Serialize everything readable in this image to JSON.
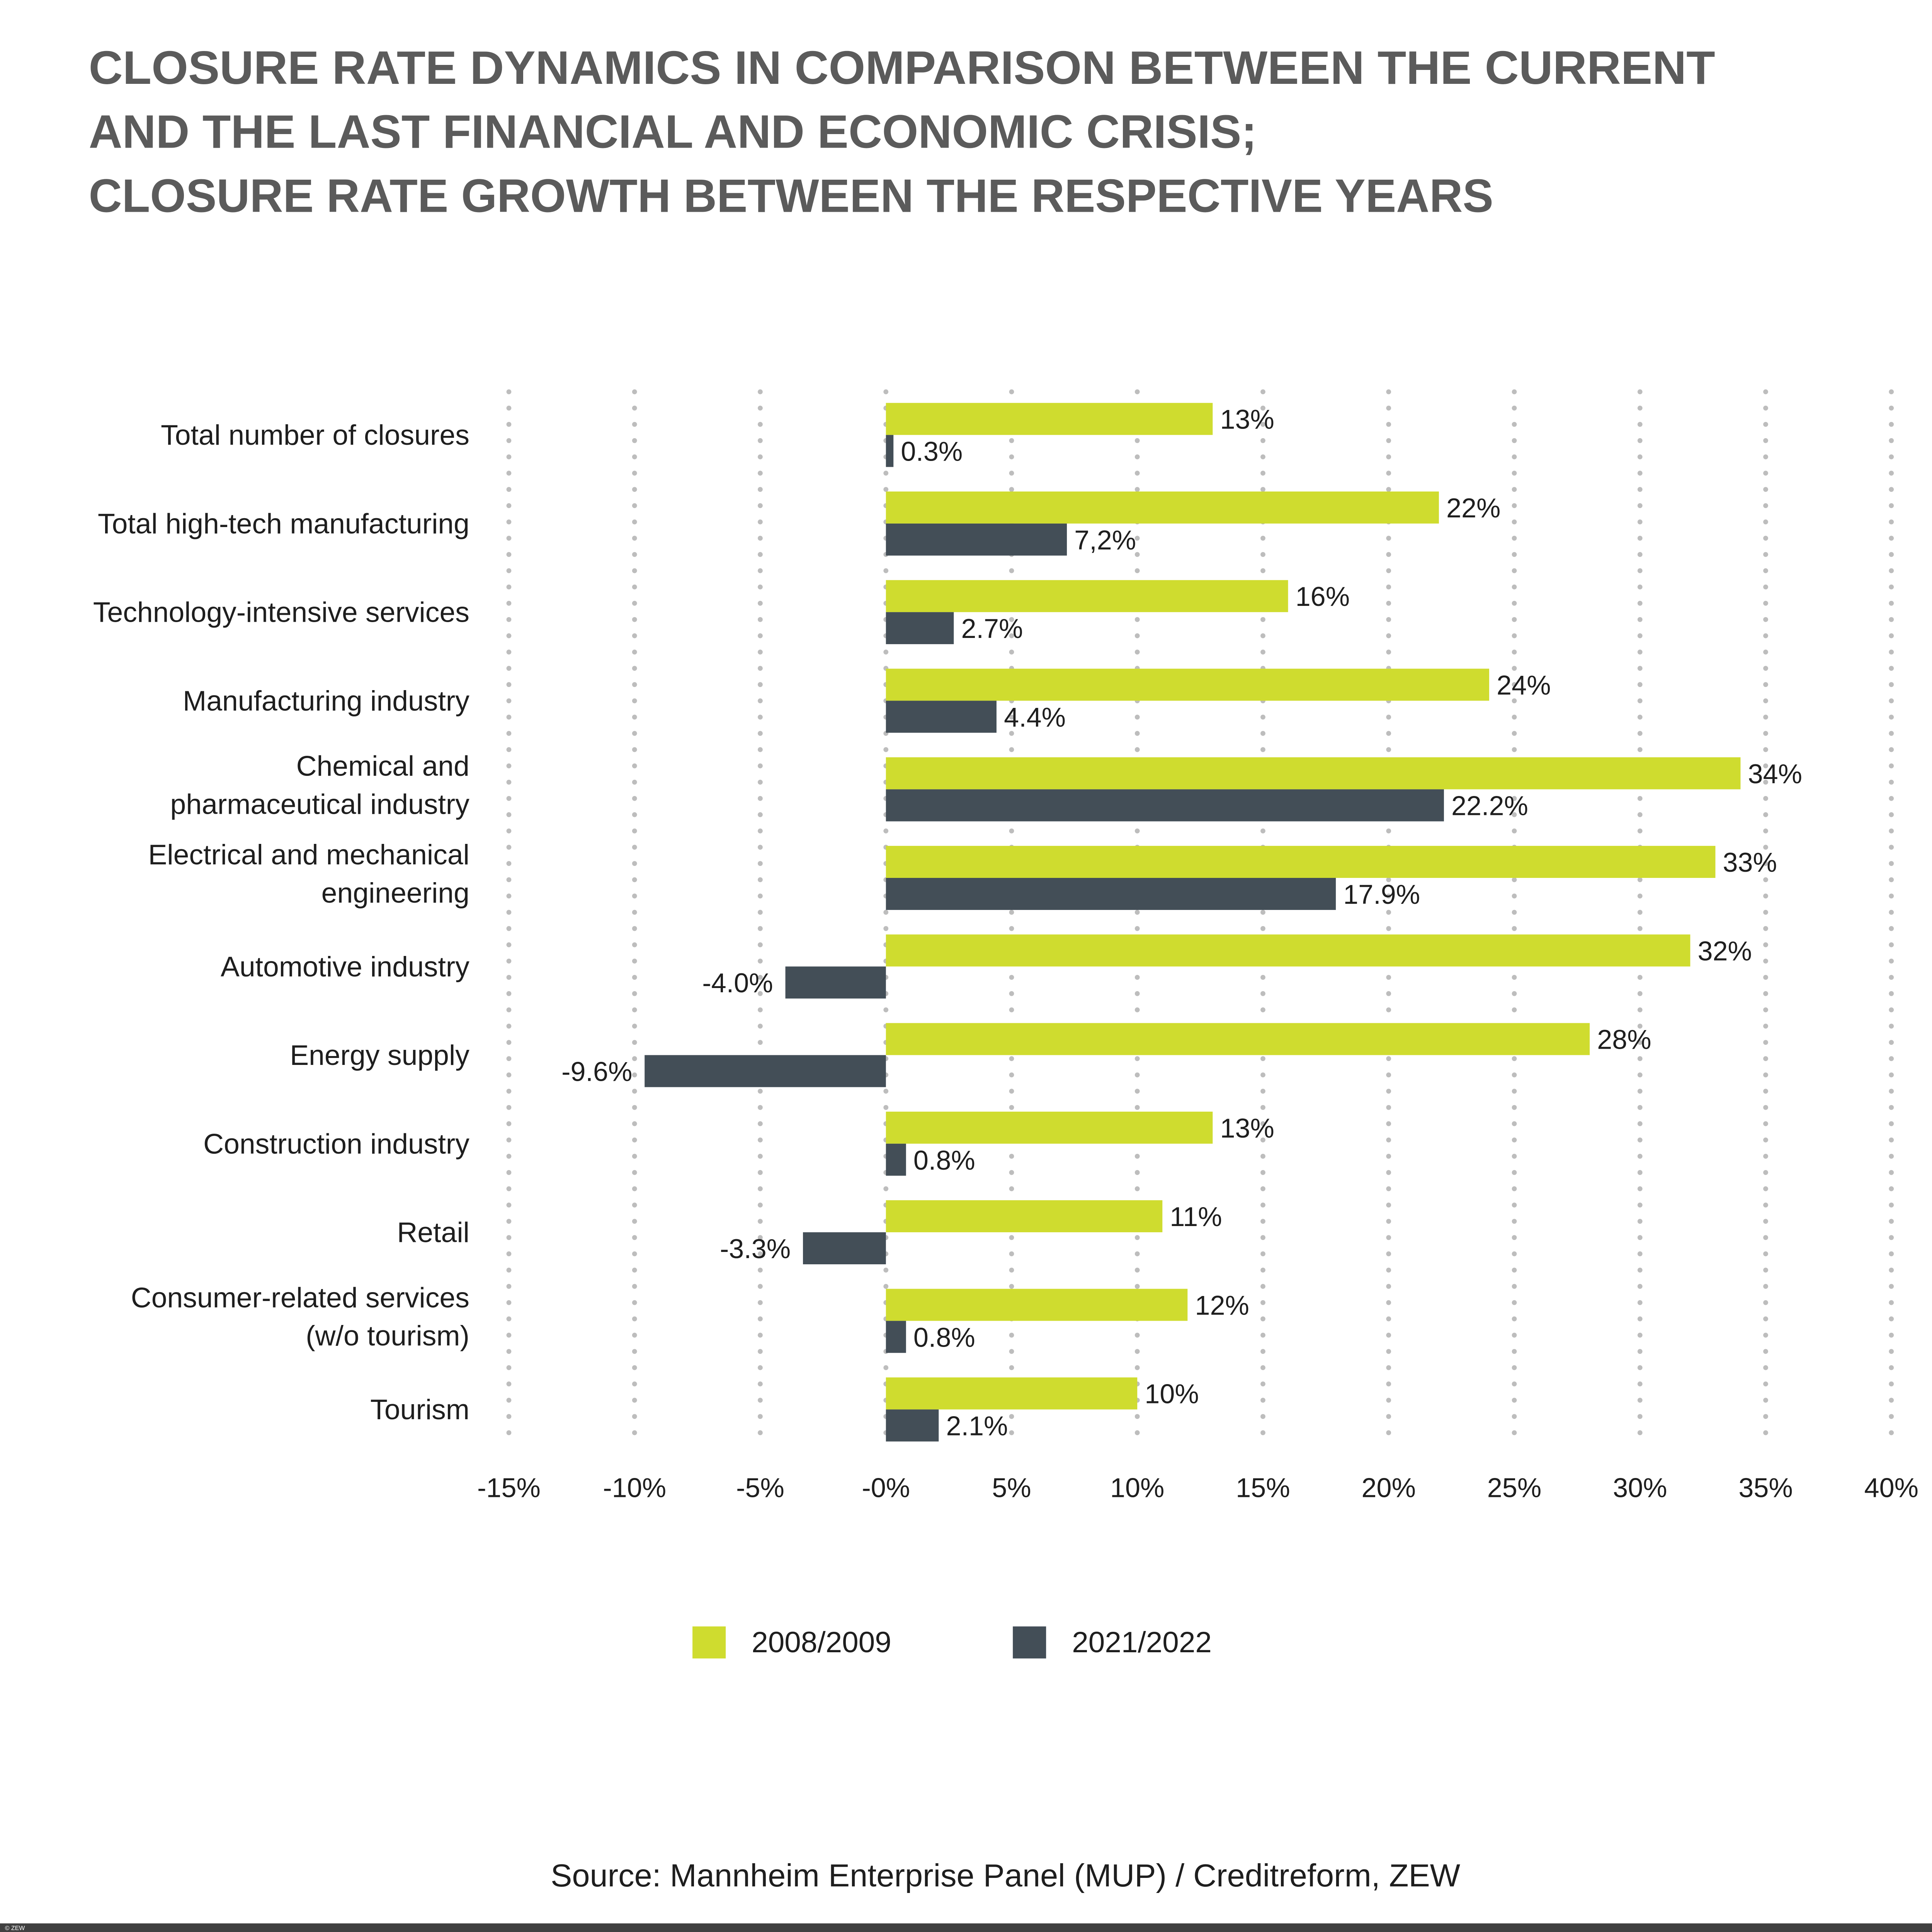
{
  "chart_data": {
    "type": "bar",
    "orientation": "horizontal",
    "title": [
      "CLOSURE RATE DYNAMICS IN COMPARISON BETWEEN THE CURRENT",
      "AND THE LAST FINANCIAL AND ECONOMIC CRISIS;",
      "CLOSURE RATE GROWTH BETWEEN THE RESPECTIVE YEARS"
    ],
    "categories": [
      [
        "Total number of closures"
      ],
      [
        "Total high-tech manufacturing"
      ],
      [
        "Technology-intensive services"
      ],
      [
        "Manufacturing industry"
      ],
      [
        "Chemical and ",
        "pharmaceutical industry"
      ],
      [
        "Electrical and mechanical ",
        "engineering"
      ],
      [
        "Automotive industry"
      ],
      [
        "Energy supply"
      ],
      [
        "Construction industry"
      ],
      [
        "Retail"
      ],
      [
        "Consumer-related services ",
        "(w/o tourism)"
      ],
      [
        "Tourism"
      ]
    ],
    "series": [
      {
        "name": "2008/2009",
        "color": "#cfdc2f",
        "values": [
          13,
          22,
          16,
          24,
          34,
          33,
          32,
          28,
          13,
          11,
          12,
          10
        ],
        "labels": [
          "13%",
          "22%",
          "16%",
          "24%",
          "34%",
          "33%",
          "32%",
          "28%",
          "13%",
          "11%",
          "12%",
          "10%"
        ]
      },
      {
        "name": "2021/2022",
        "color": "#434e57",
        "values": [
          0.3,
          7.2,
          2.7,
          4.4,
          22.2,
          17.9,
          -4.0,
          -9.6,
          0.8,
          -3.3,
          0.8,
          2.1
        ],
        "labels": [
          "0.3%",
          "7,2%",
          "2.7%",
          "4.4%",
          "22.2%",
          "17.9%",
          "-4.0%",
          "-9.6%",
          "0.8%",
          "-3.3%",
          "0.8%",
          "2.1%"
        ]
      }
    ],
    "xlim": [
      -15,
      40
    ],
    "xticks": [
      -15,
      -10,
      -5,
      0,
      5,
      10,
      15,
      20,
      25,
      30,
      35,
      40
    ],
    "xtick_labels": [
      "-15%",
      "-10%",
      "-5%",
      "-0%",
      "5%",
      "10%",
      "15%",
      "20%",
      "25%",
      "30%",
      "35%",
      "40%"
    ],
    "grid": "vertical dotted",
    "grid_color": "#bdbdbd",
    "legend_position": "bottom",
    "source": "Source: Mannheim Enterprise Panel (MUP) / Creditreform, ZEW"
  },
  "footer": {
    "copyright": "© ZEW",
    "bar_color": "#404040"
  }
}
